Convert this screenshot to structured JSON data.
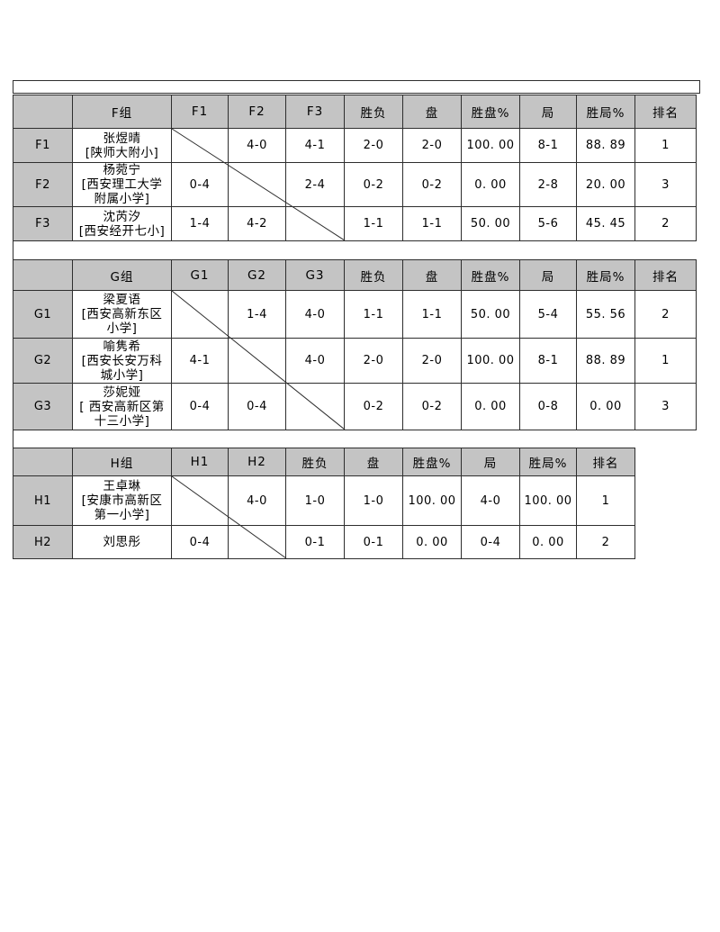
{
  "colors": {
    "header_bg": "#c4c4c4",
    "border": "#2e2e2e",
    "text": "#000000",
    "background": "#ffffff"
  },
  "tables": [
    {
      "group_id": "F",
      "corner_label": "",
      "group_header": "F组",
      "opponent_headers": [
        "F1",
        "F2",
        "F3"
      ],
      "stat_headers": [
        "胜负",
        "盘",
        "胜盘%",
        "局",
        "胜局%",
        "排名"
      ],
      "rows": [
        {
          "label": "F1",
          "name_lines": [
            "张煜晴",
            "[陕师大附小]"
          ],
          "results": [
            "",
            "4-0",
            "4-1"
          ],
          "stats": [
            "2-0",
            "2-0",
            "100. 00",
            "8-1",
            "88. 89",
            "1"
          ]
        },
        {
          "label": "F2",
          "name_lines": [
            "杨菀宁",
            "[西安理工大学",
            "附属小学]"
          ],
          "results": [
            "0-4",
            "",
            "2-4"
          ],
          "stats": [
            "0-2",
            "0-2",
            "0. 00",
            "2-8",
            "20. 00",
            "3"
          ]
        },
        {
          "label": "F3",
          "name_lines": [
            "沈芮汐",
            "[西安经开七小]"
          ],
          "results": [
            "1-4",
            "4-2",
            ""
          ],
          "stats": [
            "1-1",
            "1-1",
            "50. 00",
            "5-6",
            "45. 45",
            "2"
          ]
        }
      ]
    },
    {
      "group_id": "G",
      "corner_label": "",
      "group_header": "G组",
      "opponent_headers": [
        "G1",
        "G2",
        "G3"
      ],
      "stat_headers": [
        "胜负",
        "盘",
        "胜盘%",
        "局",
        "胜局%",
        "排名"
      ],
      "rows": [
        {
          "label": "G1",
          "name_lines": [
            "梁夏语",
            "[西安高新东区",
            "小学]"
          ],
          "results": [
            "",
            "1-4",
            "4-0"
          ],
          "stats": [
            "1-1",
            "1-1",
            "50. 00",
            "5-4",
            "55. 56",
            "2"
          ]
        },
        {
          "label": "G2",
          "name_lines": [
            "喻隽希",
            "[西安长安万科",
            "城小学]"
          ],
          "results": [
            "4-1",
            "",
            "4-0"
          ],
          "stats": [
            "2-0",
            "2-0",
            "100. 00",
            "8-1",
            "88. 89",
            "1"
          ]
        },
        {
          "label": "G3",
          "name_lines": [
            "莎妮娅",
            "[ 西安高新区第",
            "十三小学]"
          ],
          "results": [
            "0-4",
            "0-4",
            ""
          ],
          "stats": [
            "0-2",
            "0-2",
            "0. 00",
            "0-8",
            "0. 00",
            "3"
          ]
        }
      ]
    },
    {
      "group_id": "H",
      "corner_label": "",
      "group_header": "H组",
      "opponent_headers": [
        "H1",
        "H2"
      ],
      "stat_headers": [
        "胜负",
        "盘",
        "胜盘%",
        "局",
        "胜局%",
        "排名"
      ],
      "rows": [
        {
          "label": "H1",
          "name_lines": [
            "王卓琳",
            "[安康市高新区",
            "第一小学]"
          ],
          "results": [
            "",
            "4-0"
          ],
          "stats": [
            "1-0",
            "1-0",
            "100. 00",
            "4-0",
            "100. 00",
            "1"
          ]
        },
        {
          "label": "H2",
          "name_lines": [
            "刘思彤"
          ],
          "results": [
            "0-4",
            ""
          ],
          "stats": [
            "0-1",
            "0-1",
            "0. 00",
            "0-4",
            "0. 00",
            "2"
          ]
        }
      ]
    }
  ]
}
